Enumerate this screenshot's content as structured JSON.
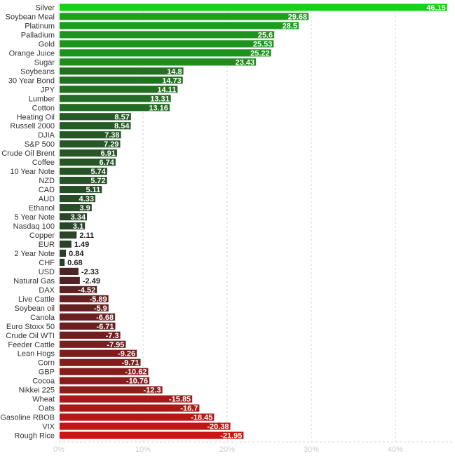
{
  "chart_data": {
    "type": "bar",
    "orientation": "horizontal",
    "categories": [
      "Silver",
      "Soybean Meal",
      "Platinum",
      "Palladium",
      "Gold",
      "Orange Juice",
      "Sugar",
      "Soybeans",
      "30 Year Bond",
      "JPY",
      "Lumber",
      "Cotton",
      "Heating Oil",
      "Russell 2000",
      "DJIA",
      "S&P 500",
      "Crude Oil Brent",
      "Coffee",
      "10 Year Note",
      "NZD",
      "CAD",
      "AUD",
      "Ethanol",
      "5 Year Note",
      "Nasdaq 100",
      "Copper",
      "EUR",
      "2 Year Note",
      "CHF",
      "USD",
      "Natural Gas",
      "DAX",
      "Live Cattle",
      "Soybean oil",
      "Canola",
      "Euro Stoxx 50",
      "Crude Oil WTI",
      "Feeder Cattle",
      "Lean Hogs",
      "Corn",
      "GBP",
      "Cocoa",
      "Nikkei 225",
      "Wheat",
      "Oats",
      "Gasoline RBOB",
      "VIX",
      "Rough Rice"
    ],
    "values": [
      46.15,
      29.68,
      28.5,
      25.6,
      25.53,
      25.22,
      23.43,
      14.8,
      14.73,
      14.11,
      13.31,
      13.16,
      8.57,
      8.54,
      7.38,
      7.29,
      6.91,
      6.74,
      5.74,
      5.72,
      5.11,
      4.33,
      3.9,
      3.34,
      3.1,
      2.11,
      1.49,
      0.84,
      0.68,
      -2.33,
      -2.49,
      -4.52,
      -5.89,
      -5.9,
      -6.68,
      -6.71,
      -7.3,
      -7.95,
      -9.26,
      -9.71,
      -10.62,
      -10.76,
      -12.3,
      -15.85,
      -16.7,
      -18.45,
      -20.38,
      -21.95
    ],
    "value_labels": [
      "46.15",
      "29.68",
      "28.5",
      "25.6",
      "25.53",
      "25.22",
      "23.43",
      "14.8",
      "14.73",
      "14.11",
      "13.31",
      "13.16",
      "8.57",
      "8.54",
      "7.38",
      "7.29",
      "6.91",
      "6.74",
      "5.74",
      "5.72",
      "5.11",
      "4.33",
      "3.9",
      "3.34",
      "3.1",
      "2.11",
      "1.49",
      "0.84",
      "0.68",
      "-2.33",
      "-2.49",
      "-4.52",
      "-5.89",
      "-5.9",
      "-6.68",
      "-6.71",
      "-7.3",
      "-7.95",
      "-9.26",
      "-9.71",
      "-10.62",
      "-10.76",
      "-12.3",
      "-15.85",
      "-16.7",
      "-18.45",
      "-20.38",
      "-21.95"
    ],
    "bar_magnitude": "absolute",
    "xlim": [
      0,
      47
    ],
    "x_ticks": [
      0,
      10,
      20,
      30,
      40
    ],
    "x_tick_labels": [
      "0%",
      "10%",
      "20%",
      "30%",
      "40%"
    ],
    "title": "",
    "xlabel": "",
    "ylabel": "",
    "grid": "vertical dashed",
    "legend": "none",
    "colors": {
      "positive_strong": "#14d314",
      "positive_dark": "#2a3a2a",
      "negative_dark": "#3a2626",
      "negative_strong": "#cc1414",
      "grid": "#d6d6d6",
      "tick_text": "#cccccc",
      "label_text": "#333333"
    }
  }
}
